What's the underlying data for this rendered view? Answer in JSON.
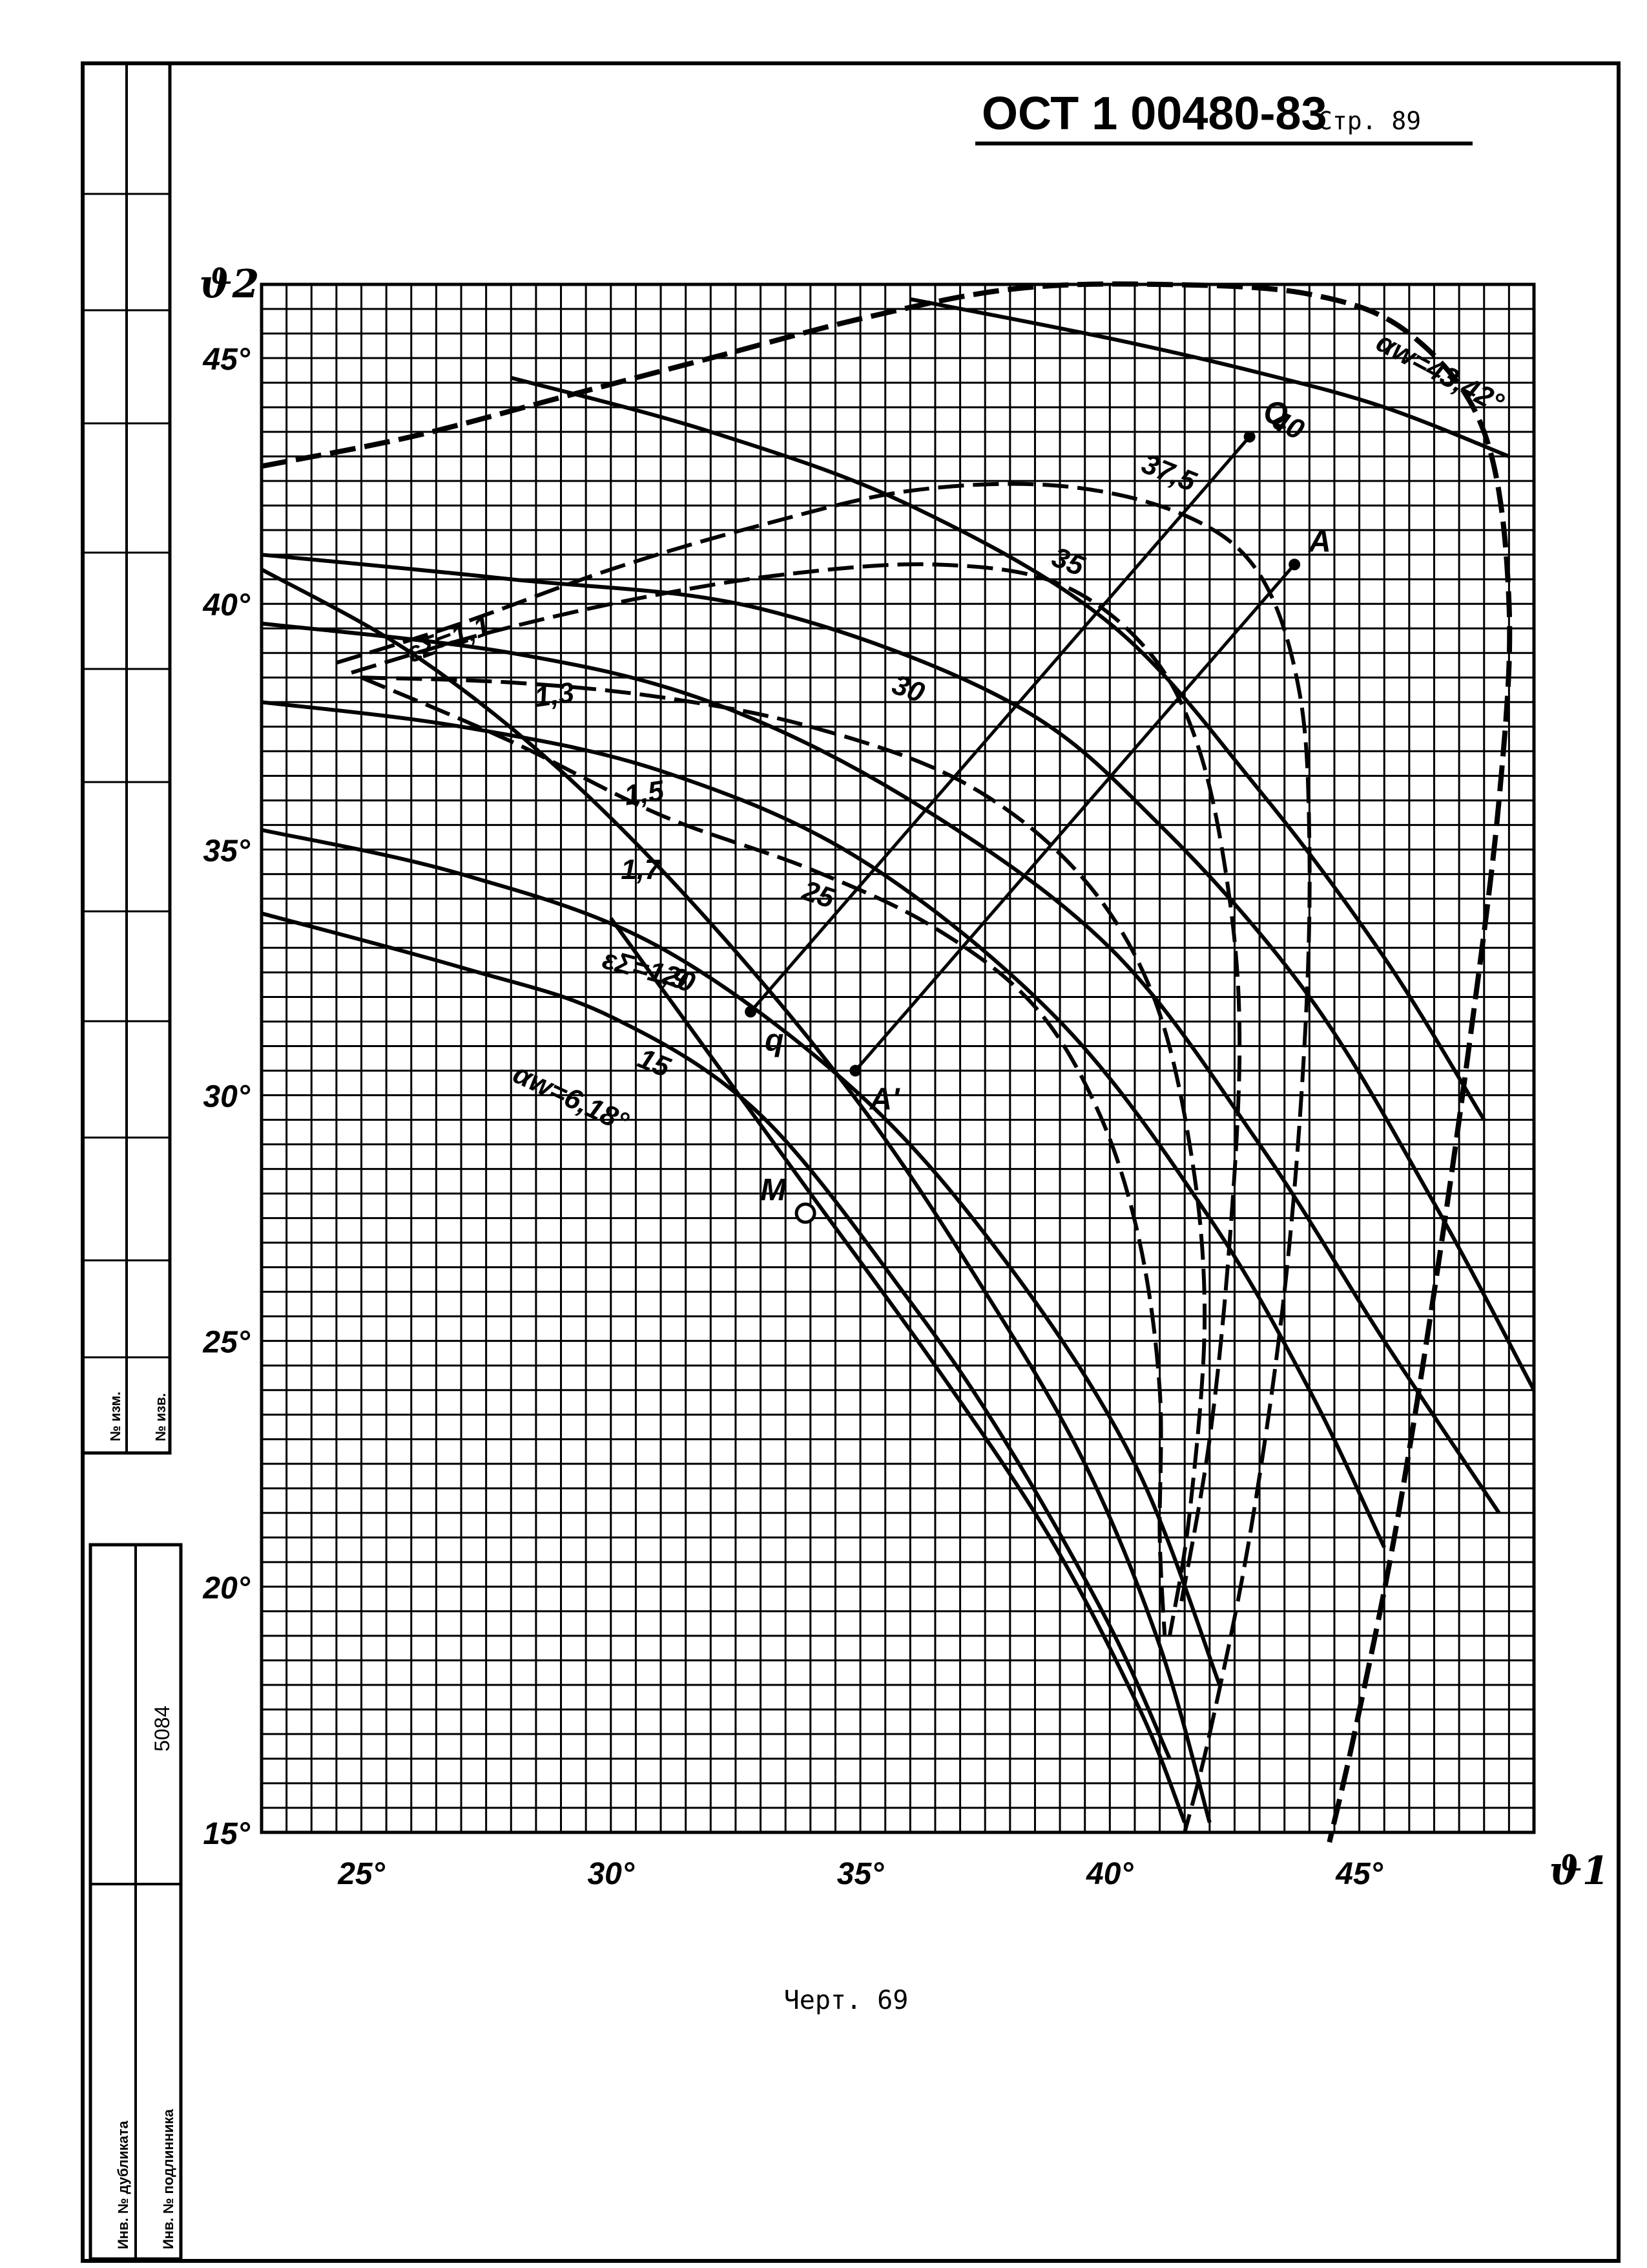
{
  "header": {
    "standard": "ОСТ 1 00480-83",
    "page_label": "Стр. 89"
  },
  "caption": "Черт. 69",
  "sidebar": {
    "izm_1": "№ изм.",
    "izm_2": "№ изв.",
    "dubl": "Инв. № дубликата",
    "podl": "Инв. № подлинника",
    "number": "5084"
  },
  "chart_data": {
    "type": "line",
    "xlabel": "ϑ1",
    "ylabel": "ϑ2",
    "xlim": [
      23,
      48.5
    ],
    "ylim": [
      15,
      46.5
    ],
    "grid": true,
    "x_ticks": [
      25,
      30,
      35,
      40,
      45
    ],
    "y_ticks": [
      15,
      20,
      25,
      30,
      35,
      40,
      45
    ],
    "x_tick_labels": [
      "25°",
      "30°",
      "35°",
      "40°",
      "45°"
    ],
    "y_tick_labels": [
      "15°",
      "20°",
      "25°",
      "30°",
      "35°",
      "40°",
      "45°"
    ],
    "alpha_curves": [
      {
        "label": "αw=43,42°",
        "points": [
          [
            36,
            46.2
          ],
          [
            40,
            45.4
          ],
          [
            43,
            44.7
          ],
          [
            45.5,
            44
          ],
          [
            48,
            43
          ]
        ]
      },
      {
        "label": "40",
        "points": [
          [
            23,
            41
          ],
          [
            28,
            40.5
          ],
          [
            33,
            39.9
          ],
          [
            38,
            38
          ],
          [
            41,
            35.5
          ],
          [
            44,
            32
          ],
          [
            46.5,
            27.8
          ],
          [
            48.5,
            24
          ]
        ]
      },
      {
        "label": "37,5",
        "points": [
          [
            23,
            39.6
          ],
          [
            28,
            39
          ],
          [
            32,
            38
          ],
          [
            36,
            36
          ],
          [
            40,
            33
          ],
          [
            43,
            29
          ],
          [
            45.5,
            25
          ],
          [
            47.8,
            21.5
          ]
        ]
      },
      {
        "label": "35",
        "points": [
          [
            28,
            44.6
          ],
          [
            32,
            43.5
          ],
          [
            36,
            42
          ],
          [
            40,
            39.6
          ],
          [
            43,
            36.2
          ],
          [
            45.5,
            32.8
          ],
          [
            47.5,
            29.5
          ]
        ]
      },
      {
        "label": "30",
        "points": [
          [
            23,
            38
          ],
          [
            27,
            37.5
          ],
          [
            31,
            36.6
          ],
          [
            35,
            34.8
          ],
          [
            39,
            31.5
          ],
          [
            42,
            27.5
          ],
          [
            44,
            24
          ],
          [
            45.5,
            20.8
          ]
        ]
      },
      {
        "label": "25",
        "points": [
          [
            23,
            35.4
          ],
          [
            27,
            34.5
          ],
          [
            31,
            33
          ],
          [
            35,
            30
          ],
          [
            38,
            26.5
          ],
          [
            40.5,
            22.5
          ],
          [
            42.2,
            18
          ]
        ]
      },
      {
        "label": "20",
        "points": [
          [
            23,
            33.7
          ],
          [
            27,
            32.6
          ],
          [
            30,
            31.6
          ],
          [
            33,
            29.6
          ],
          [
            36,
            25.8
          ],
          [
            38,
            22.8
          ],
          [
            40,
            19.2
          ],
          [
            41.2,
            16.5
          ]
        ]
      },
      {
        "label": "15",
        "points": [
          [
            30,
            33.6
          ],
          [
            32,
            30.8
          ],
          [
            34,
            28
          ],
          [
            36.5,
            24.5
          ],
          [
            38.8,
            21
          ],
          [
            40.6,
            17.5
          ],
          [
            41.5,
            15.2
          ]
        ]
      },
      {
        "label": "αw=6,18°",
        "points": [
          [
            23,
            40.7
          ],
          [
            26,
            39
          ],
          [
            29,
            36.6
          ],
          [
            32,
            33.5
          ],
          [
            35,
            29.8
          ],
          [
            37.5,
            26
          ],
          [
            39.5,
            22.5
          ],
          [
            41,
            18.8
          ],
          [
            42,
            15.2
          ]
        ]
      }
    ],
    "epsilon_curves": [
      {
        "label": "εΣ=1,1",
        "points": [
          [
            23,
            42.8
          ],
          [
            26,
            43.4
          ],
          [
            29,
            44.2
          ],
          [
            32,
            45
          ],
          [
            35,
            45.8
          ],
          [
            38,
            46.4
          ],
          [
            41,
            46.5
          ],
          [
            44,
            46.3
          ],
          [
            46,
            45.5
          ],
          [
            47.5,
            43.5
          ],
          [
            48,
            40
          ],
          [
            47.8,
            36
          ],
          [
            47.2,
            31
          ],
          [
            46.5,
            26
          ],
          [
            45.7,
            21
          ],
          [
            44.9,
            17
          ],
          [
            44.4,
            14.8
          ]
        ]
      },
      {
        "label": "1,3",
        "points": [
          [
            24.5,
            38.8
          ],
          [
            27,
            39.6
          ],
          [
            30,
            40.7
          ],
          [
            33,
            41.6
          ],
          [
            36,
            42.3
          ],
          [
            39,
            42.4
          ],
          [
            41.5,
            41.8
          ],
          [
            43,
            40.6
          ],
          [
            43.8,
            38.2
          ],
          [
            44,
            35
          ],
          [
            43.9,
            31
          ],
          [
            43.5,
            26
          ],
          [
            42.8,
            21
          ],
          [
            42,
            17
          ],
          [
            41.5,
            15
          ]
        ]
      },
      {
        "label": "1,5",
        "points": [
          [
            24.8,
            38.6
          ],
          [
            27.5,
            39.4
          ],
          [
            30.5,
            40.1
          ],
          [
            33.5,
            40.6
          ],
          [
            36.5,
            40.8
          ],
          [
            39,
            40.4
          ],
          [
            40.8,
            39
          ],
          [
            41.8,
            37
          ],
          [
            42.4,
            34
          ],
          [
            42.6,
            31
          ],
          [
            42.4,
            27
          ],
          [
            42,
            23
          ],
          [
            41.4,
            19.5
          ]
        ]
      },
      {
        "label": "1,7",
        "points": [
          [
            25,
            38.5
          ],
          [
            28,
            38.4
          ],
          [
            31,
            38.1
          ],
          [
            34,
            37.5
          ],
          [
            37,
            36.4
          ],
          [
            39.3,
            34.6
          ],
          [
            40.8,
            32.2
          ],
          [
            41.6,
            29
          ],
          [
            41.9,
            25.5
          ],
          [
            41.6,
            21.5
          ],
          [
            41.2,
            19
          ]
        ]
      },
      {
        "label": "εΣ=1,9",
        "points": [
          [
            25,
            38.5
          ],
          [
            28,
            37.2
          ],
          [
            31,
            35.7
          ],
          [
            34,
            34.6
          ],
          [
            36.5,
            33.4
          ],
          [
            38.5,
            31.8
          ],
          [
            39.8,
            29.6
          ],
          [
            40.6,
            27
          ],
          [
            41,
            24
          ],
          [
            41,
            21
          ],
          [
            41.1,
            19
          ]
        ]
      }
    ],
    "lines": [
      {
        "label": "q-Q",
        "points": [
          [
            32.8,
            31.7
          ],
          [
            42.8,
            43.4
          ]
        ]
      },
      {
        "label": "A-A'",
        "points": [
          [
            34.9,
            30.5
          ],
          [
            43.7,
            40.8
          ]
        ]
      }
    ],
    "points": [
      {
        "label": "Q",
        "x": 42.8,
        "y": 43.4
      },
      {
        "label": "q",
        "x": 32.8,
        "y": 31.7
      },
      {
        "label": "A",
        "x": 43.7,
        "y": 40.8
      },
      {
        "label": "A'",
        "x": 34.9,
        "y": 30.5
      },
      {
        "label": "M",
        "x": 33.9,
        "y": 27.6
      }
    ]
  }
}
